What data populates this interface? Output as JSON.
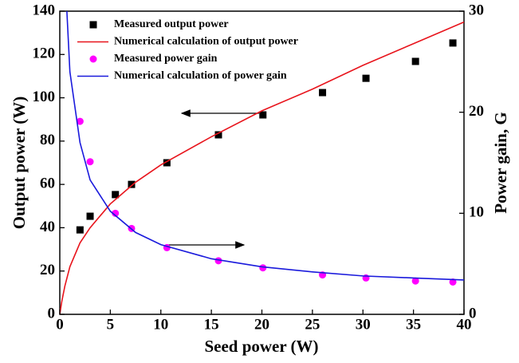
{
  "chart_data": {
    "type": "line",
    "x_label": "Seed power (W)",
    "y_label": "Output power (W)",
    "y2_label": "Power gain, G",
    "xlim": [
      0,
      40
    ],
    "xticks": [
      0,
      5,
      10,
      15,
      20,
      25,
      30,
      35,
      40
    ],
    "ylim": [
      0,
      140
    ],
    "yticks": [
      0,
      20,
      40,
      60,
      80,
      100,
      120,
      140
    ],
    "y2lim": [
      0,
      30
    ],
    "y2ticks": [
      0,
      10,
      20,
      30
    ],
    "legend": "upper left",
    "series": [
      {
        "name": "Measured output power",
        "color": "#000000",
        "mode": "markers",
        "marker": "square",
        "x": [
          2.0,
          3.0,
          5.5,
          7.1,
          10.6,
          15.7,
          20.1,
          26.0,
          30.3,
          35.2,
          38.9
        ],
        "values": [
          39,
          45.3,
          55.3,
          60,
          70,
          82.9,
          92.1,
          102.4,
          109,
          116.8,
          125.3
        ]
      },
      {
        "name": "Numerical calculation of output power",
        "color": "#e8141c",
        "mode": "line",
        "x": [
          0,
          0.2,
          0.5,
          1,
          2,
          3,
          5,
          7.5,
          10,
          15,
          20,
          25,
          30,
          35,
          40
        ],
        "values": [
          0,
          6,
          13,
          22,
          33,
          40,
          51,
          61,
          69,
          82,
          94,
          104,
          115,
          125,
          135
        ]
      },
      {
        "name": "Measured power gain",
        "color": "#ff00ff",
        "mode": "markers",
        "marker": "circle",
        "axis": "y2",
        "x": [
          2.0,
          3.0,
          5.5,
          7.1,
          10.6,
          15.7,
          20.1,
          26.0,
          30.3,
          35.2,
          38.9
        ],
        "values": [
          19.1,
          15.1,
          10.0,
          8.5,
          6.6,
          5.3,
          4.6,
          3.9,
          3.6,
          3.3,
          3.2
        ]
      },
      {
        "name": "Numerical calculation of power gain",
        "color": "#1a1adc",
        "mode": "line",
        "axis": "y2",
        "x": [
          0.7,
          1,
          2,
          3,
          5,
          7.5,
          10,
          15,
          20,
          25,
          30,
          35,
          40
        ],
        "values": [
          30,
          24,
          17,
          13.3,
          10.2,
          8.1,
          6.9,
          5.5,
          4.7,
          4.2,
          3.8,
          3.6,
          3.4
        ]
      }
    ]
  }
}
